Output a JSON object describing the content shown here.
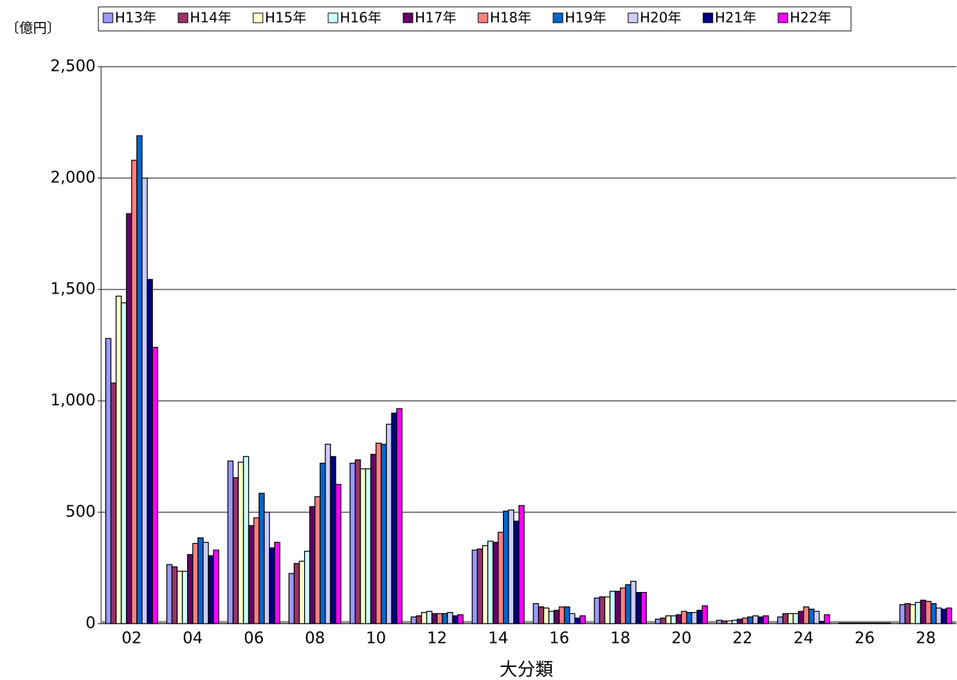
{
  "chart_data": {
    "type": "bar",
    "y_unit": "〔億円〕",
    "x_label": "大分類",
    "categories": [
      "02",
      "04",
      "06",
      "08",
      "10",
      "12",
      "14",
      "16",
      "18",
      "20",
      "22",
      "24",
      "26",
      "28"
    ],
    "series": [
      {
        "name": "H13年",
        "color": "#9999ff",
        "values": [
          1280,
          265,
          730,
          225,
          720,
          30,
          330,
          90,
          115,
          20,
          15,
          30,
          3,
          85
        ]
      },
      {
        "name": "H14年",
        "color": "#993366",
        "values": [
          1080,
          255,
          655,
          270,
          735,
          35,
          335,
          75,
          120,
          25,
          12,
          45,
          3,
          90
        ]
      },
      {
        "name": "H15年",
        "color": "#ffffcc",
        "values": [
          1470,
          235,
          725,
          280,
          695,
          50,
          350,
          70,
          120,
          35,
          12,
          45,
          3,
          85
        ]
      },
      {
        "name": "H16年",
        "color": "#ccffff",
        "values": [
          1440,
          235,
          750,
          325,
          695,
          55,
          370,
          55,
          145,
          35,
          15,
          45,
          3,
          95
        ]
      },
      {
        "name": "H17年",
        "color": "#660066",
        "values": [
          1840,
          310,
          440,
          525,
          760,
          45,
          365,
          60,
          145,
          40,
          20,
          55,
          3,
          105
        ]
      },
      {
        "name": "H18年",
        "color": "#ff8080",
        "values": [
          2080,
          360,
          475,
          570,
          810,
          45,
          410,
          75,
          160,
          55,
          25,
          75,
          3,
          100
        ]
      },
      {
        "name": "H19年",
        "color": "#0066cc",
        "values": [
          2190,
          385,
          585,
          720,
          805,
          45,
          505,
          75,
          175,
          50,
          30,
          65,
          3,
          90
        ]
      },
      {
        "name": "H20年",
        "color": "#ccccff",
        "values": [
          2000,
          365,
          500,
          805,
          895,
          50,
          510,
          45,
          190,
          50,
          35,
          55,
          3,
          70
        ]
      },
      {
        "name": "H21年",
        "color": "#000080",
        "values": [
          1545,
          305,
          340,
          750,
          945,
          35,
          460,
          25,
          140,
          60,
          30,
          10,
          3,
          65
        ]
      },
      {
        "name": "H22年",
        "color": "#ff00ff",
        "values": [
          1240,
          330,
          365,
          625,
          965,
          40,
          530,
          35,
          140,
          80,
          35,
          40,
          3,
          70
        ]
      }
    ],
    "ylim": [
      0,
      2500
    ],
    "yticks": [
      0,
      500,
      {
        "value": 1000,
        "label": "1,000"
      },
      {
        "value": 1500,
        "label": "1,500"
      },
      {
        "value": 2000,
        "label": "2,000"
      },
      {
        "value": 2500,
        "label": "2,500"
      }
    ],
    "grid": true
  }
}
